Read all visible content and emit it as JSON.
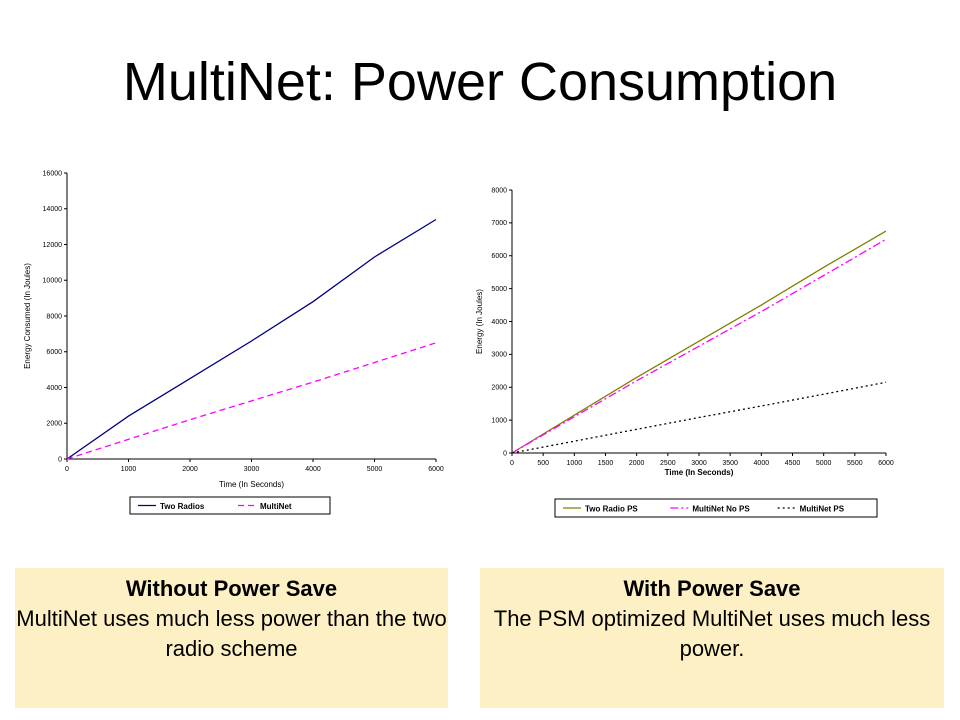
{
  "slide": {
    "title": "MultiNet: Power Consumption"
  },
  "captions": [
    {
      "title": "Without Power Save",
      "text": "MultiNet uses much less power than the two radio scheme"
    },
    {
      "title": "With Power Save",
      "text": "The PSM optimized MultiNet uses much less power."
    }
  ],
  "chart_data": [
    {
      "type": "line",
      "xlabel": "Time (In Seconds)",
      "ylabel": "Energy Consumed (In Joules)",
      "xlim": [
        0,
        6000
      ],
      "ylim": [
        0,
        16000
      ],
      "xticks": [
        0,
        1000,
        2000,
        3000,
        4000,
        5000,
        6000
      ],
      "yticks": [
        0,
        2000,
        4000,
        6000,
        8000,
        10000,
        12000,
        14000,
        16000
      ],
      "grid": false,
      "legend_position": "bottom",
      "series": [
        {
          "name": "Two Radios",
          "color": "#000080",
          "dash": "solid",
          "x": [
            0,
            1000,
            2000,
            3000,
            4000,
            5000,
            6000
          ],
          "y": [
            0,
            2400,
            4500,
            6600,
            8800,
            11300,
            13400
          ]
        },
        {
          "name": "MultiNet",
          "color": "#ff00ff",
          "dash": "dashed",
          "x": [
            0,
            1000,
            2000,
            3000,
            4000,
            5000,
            6000
          ],
          "y": [
            0,
            1100,
            2200,
            3250,
            4300,
            5400,
            6500
          ]
        }
      ]
    },
    {
      "type": "line",
      "xlabel": "Time (In Seconds)",
      "ylabel": "Energy (In Joules)",
      "xlim": [
        0,
        6000
      ],
      "ylim": [
        0,
        8000
      ],
      "xticks": [
        0,
        500,
        1000,
        1500,
        2000,
        2500,
        3000,
        3500,
        4000,
        4500,
        5000,
        5500,
        6000
      ],
      "yticks": [
        0,
        1000,
        2000,
        3000,
        4000,
        5000,
        6000,
        7000,
        8000
      ],
      "grid": false,
      "legend_position": "bottom",
      "series": [
        {
          "name": "Two Radio PS",
          "color": "#808000",
          "dash": "solid",
          "x": [
            0,
            1000,
            2000,
            3000,
            4000,
            5000,
            6000
          ],
          "y": [
            0,
            1150,
            2300,
            3400,
            4500,
            5650,
            6750
          ]
        },
        {
          "name": "MultiNet No PS",
          "color": "#ff00ff",
          "dash": "dashdot",
          "x": [
            0,
            1000,
            2000,
            3000,
            4000,
            5000,
            6000
          ],
          "y": [
            0,
            1100,
            2200,
            3250,
            4300,
            5400,
            6500
          ]
        },
        {
          "name": "MultiNet PS",
          "color": "#000000",
          "dash": "dotted",
          "x": [
            0,
            1000,
            2000,
            3000,
            4000,
            5000,
            6000
          ],
          "y": [
            0,
            360,
            720,
            1080,
            1430,
            1790,
            2150
          ]
        }
      ]
    }
  ]
}
